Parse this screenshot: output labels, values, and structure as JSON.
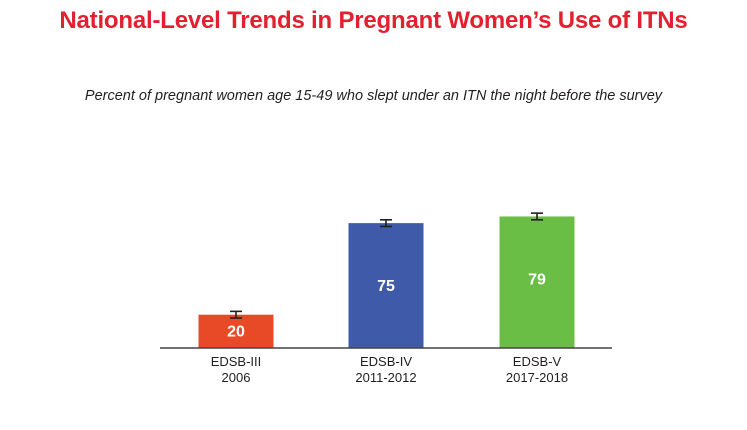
{
  "title": "National-Level Trends in Pregnant Women’s Use of ITNs",
  "subtitle": "Percent of pregnant women age 15-49 who slept under an ITN the night before the survey",
  "colors": {
    "title": "#e3202f",
    "axis": "#444444",
    "error_bar": "#231f20"
  },
  "chart_data": {
    "type": "bar",
    "categories": [
      [
        "EDSB-III",
        "2006"
      ],
      [
        "EDSB-IV",
        "2011-2012"
      ],
      [
        "EDSB-V",
        "2017-2018"
      ]
    ],
    "values": [
      20,
      75,
      79
    ],
    "value_labels": [
      "20",
      "75",
      "79"
    ],
    "error_bars": [
      2,
      2,
      2
    ],
    "bar_colors": [
      "#e84a27",
      "#3e5aa8",
      "#6abd45"
    ],
    "ylim": [
      0,
      100
    ],
    "grid": false,
    "legend": false,
    "data_labels": true
  }
}
